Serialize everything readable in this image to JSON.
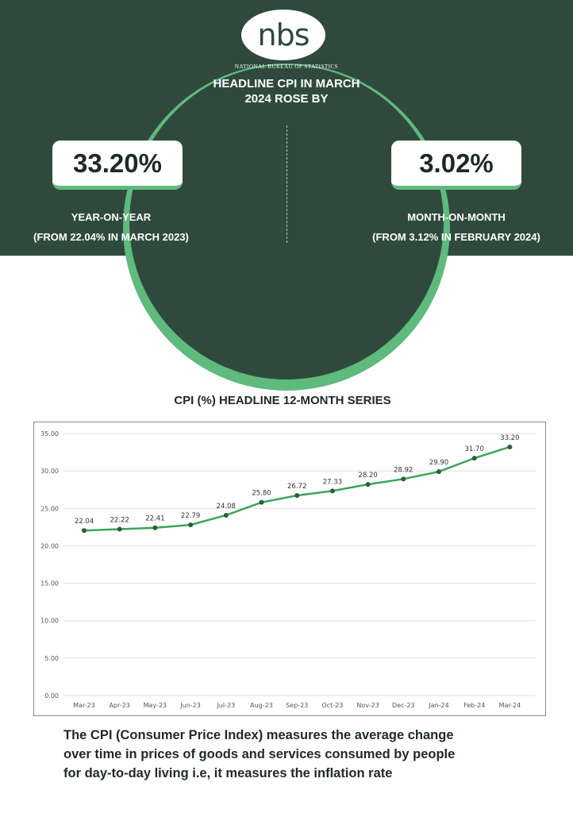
{
  "logo": {
    "text": "nbs",
    "org_name": "NATIONAL BUREAU OF STATISTICS"
  },
  "headline": {
    "line1": "HEADLINE CPI IN MARCH",
    "line2": "2024 ROSE BY"
  },
  "stats": {
    "yoy": {
      "value": "33.20%",
      "label": "YEAR-ON-YEAR",
      "sublabel": "(FROM 22.04% IN MARCH 2023)"
    },
    "mom": {
      "value": "3.02%",
      "label": "MONTH-ON-MONTH",
      "sublabel": "(FROM 3.12% IN FEBRUARY 2024)"
    }
  },
  "colors": {
    "dark_green": "#2f4a3d",
    "accent_green": "#5fba7d",
    "line_green": "#3aa655",
    "marker": "#2f5a3e"
  },
  "chart_title": "CPI (%)  HEADLINE 12-MONTH SERIES",
  "chart_data": {
    "type": "line",
    "categories": [
      "Mar-23",
      "Apr-23",
      "May-23",
      "Jun-23",
      "Jul-23",
      "Aug-23",
      "Sep-23",
      "Oct-23",
      "Nov-23",
      "Dec-23",
      "Jan-24",
      "Feb-24",
      "Mar-24"
    ],
    "values": [
      22.04,
      22.22,
      22.41,
      22.79,
      24.08,
      25.8,
      26.72,
      27.33,
      28.2,
      28.92,
      29.9,
      31.7,
      33.2
    ],
    "data_labels": [
      "22.04",
      "22.22",
      "22.41",
      "22.79",
      "24.08",
      "25.80",
      "26.72",
      "27.33",
      "28.20",
      "28.92",
      "29.90",
      "31.70",
      "33.20"
    ],
    "ylim": [
      0,
      35
    ],
    "y_ticks": [
      0,
      5,
      10,
      15,
      20,
      25,
      30,
      35
    ],
    "y_tick_labels": [
      "0.00",
      "5.00",
      "10.00",
      "15.00",
      "20.00",
      "25.00",
      "30.00",
      "35.00"
    ],
    "grid": true,
    "markers": true,
    "title": "CPI (%)  HEADLINE 12-MONTH SERIES",
    "xlabel": "",
    "ylabel": ""
  },
  "footer": {
    "line1": "The CPI (Consumer Price Index) measures the average change",
    "line2": "over time in prices of goods and services consumed by people",
    "line3": "for day-to-day living i.e, it measures the inflation rate"
  }
}
